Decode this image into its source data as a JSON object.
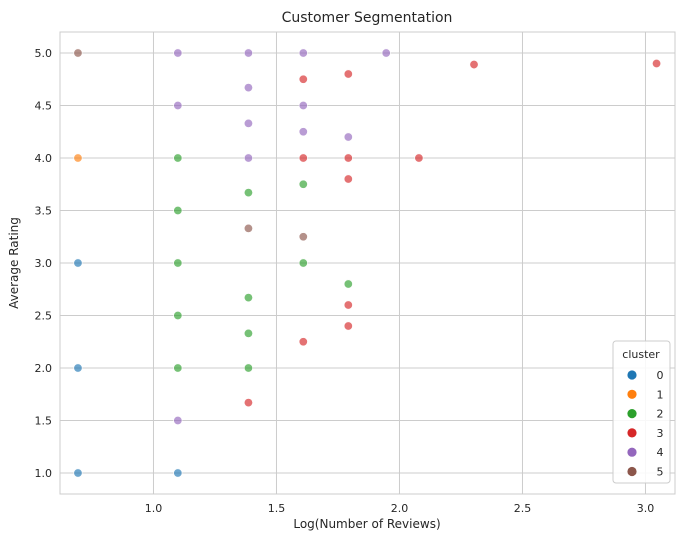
{
  "chart_data": {
    "type": "scatter",
    "title": "Customer Segmentation",
    "xlabel": "Log(Number of Reviews)",
    "ylabel": "Average Rating",
    "xlim": [
      0.62,
      3.12
    ],
    "ylim": [
      0.8,
      5.2
    ],
    "xticks": [
      "1.0",
      "1.5",
      "2.0",
      "2.5",
      "3.0"
    ],
    "xtick_values": [
      1.0,
      1.5,
      2.0,
      2.5,
      3.0
    ],
    "yticks": [
      "1.0",
      "1.5",
      "2.0",
      "2.5",
      "3.0",
      "3.5",
      "4.0",
      "4.5",
      "5.0"
    ],
    "ytick_values": [
      1.0,
      1.5,
      2.0,
      2.5,
      3.0,
      3.5,
      4.0,
      4.5,
      5.0
    ],
    "grid": true,
    "legend": {
      "title": "cluster",
      "placement": "bottom-right",
      "entries": [
        {
          "label": "0",
          "color": "#1f77b4"
        },
        {
          "label": "1",
          "color": "#ff7f0e"
        },
        {
          "label": "2",
          "color": "#2ca02c"
        },
        {
          "label": "3",
          "color": "#d62728"
        },
        {
          "label": "4",
          "color": "#9467bd"
        },
        {
          "label": "5",
          "color": "#8c564b"
        }
      ]
    },
    "series": [
      {
        "name": "0",
        "color": "#1f77b4",
        "points": [
          [
            0.693,
            1.0
          ],
          [
            0.693,
            2.0
          ],
          [
            0.693,
            3.0
          ],
          [
            1.099,
            1.0
          ]
        ]
      },
      {
        "name": "1",
        "color": "#ff7f0e",
        "points": [
          [
            0.693,
            4.0
          ]
        ]
      },
      {
        "name": "2",
        "color": "#2ca02c",
        "points": [
          [
            1.099,
            2.0
          ],
          [
            1.099,
            3.0
          ],
          [
            1.099,
            3.5
          ],
          [
            1.099,
            4.0
          ],
          [
            1.099,
            2.5
          ],
          [
            1.386,
            2.0
          ],
          [
            1.386,
            2.33
          ],
          [
            1.386,
            2.67
          ],
          [
            1.386,
            3.67
          ],
          [
            1.609,
            3.0
          ],
          [
            1.609,
            3.75
          ],
          [
            1.792,
            2.8
          ]
        ]
      },
      {
        "name": "3",
        "color": "#d62728",
        "points": [
          [
            1.386,
            1.67
          ],
          [
            1.609,
            2.25
          ],
          [
            1.609,
            4.0
          ],
          [
            1.609,
            4.75
          ],
          [
            1.792,
            2.4
          ],
          [
            1.792,
            2.6
          ],
          [
            1.792,
            3.8
          ],
          [
            1.792,
            4.0
          ],
          [
            1.792,
            4.8
          ],
          [
            2.079,
            4.0
          ],
          [
            2.303,
            4.89
          ],
          [
            3.045,
            4.9
          ]
        ]
      },
      {
        "name": "4",
        "color": "#9467bd",
        "points": [
          [
            1.099,
            1.5
          ],
          [
            1.099,
            4.5
          ],
          [
            1.099,
            5.0
          ],
          [
            1.386,
            4.0
          ],
          [
            1.386,
            4.33
          ],
          [
            1.386,
            4.67
          ],
          [
            1.386,
            5.0
          ],
          [
            1.609,
            4.25
          ],
          [
            1.609,
            4.5
          ],
          [
            1.609,
            5.0
          ],
          [
            1.792,
            4.2
          ],
          [
            1.946,
            5.0
          ]
        ]
      },
      {
        "name": "5",
        "color": "#8c564b",
        "points": [
          [
            0.693,
            5.0
          ],
          [
            1.386,
            3.33
          ],
          [
            1.609,
            3.25
          ]
        ]
      }
    ]
  }
}
